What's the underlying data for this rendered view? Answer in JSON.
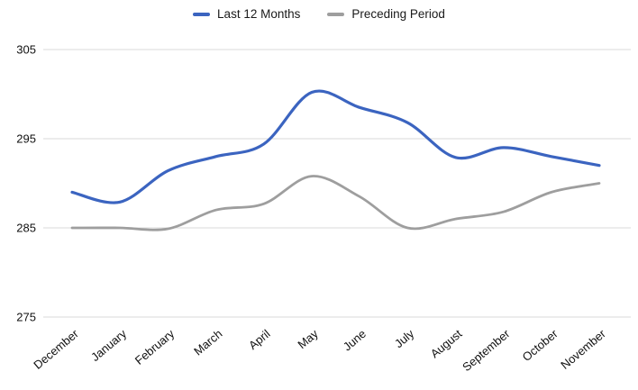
{
  "chart_data": {
    "type": "line",
    "title": "",
    "xlabel": "",
    "ylabel": "",
    "categories": [
      "December",
      "January",
      "February",
      "March",
      "April",
      "May",
      "June",
      "July",
      "August",
      "September",
      "October",
      "November"
    ],
    "series": [
      {
        "name": "Last 12 Months",
        "color": "#3b64c0",
        "values": [
          289,
          287.9,
          291.4,
          293,
          294.4,
          300.2,
          298.5,
          296.8,
          292.9,
          294,
          293,
          292
        ]
      },
      {
        "name": "Preceding Period",
        "color": "#9e9e9e",
        "values": [
          285,
          285,
          284.9,
          287,
          287.7,
          290.8,
          288.5,
          285,
          286,
          286.8,
          289,
          290
        ]
      }
    ],
    "ylim": [
      275,
      305
    ],
    "yticks": [
      275,
      285,
      295,
      305
    ],
    "grid": true,
    "legend_position": "top",
    "background": "#ffffff"
  }
}
